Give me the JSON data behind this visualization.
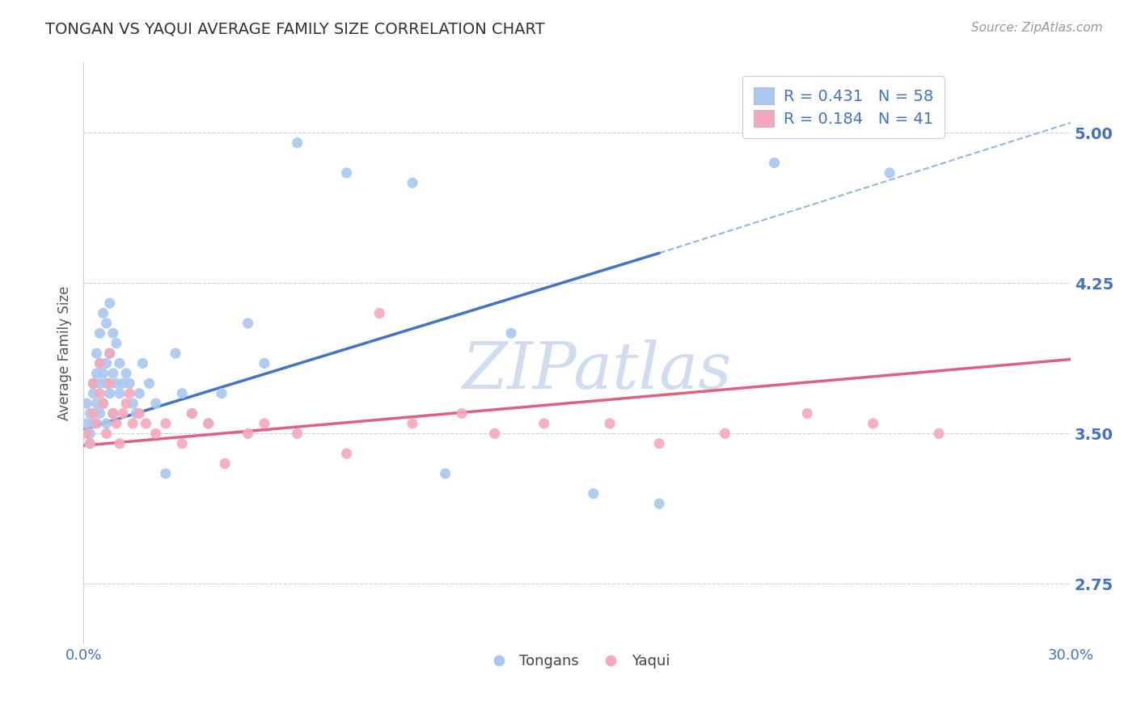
{
  "title": "TONGAN VS YAQUI AVERAGE FAMILY SIZE CORRELATION CHART",
  "source": "Source: ZipAtlas.com",
  "ylabel": "Average Family Size",
  "xlim": [
    0.0,
    0.3
  ],
  "ylim": [
    2.45,
    5.35
  ],
  "xticks": [
    0.0,
    0.3
  ],
  "xticklabels": [
    "0.0%",
    "30.0%"
  ],
  "yticks": [
    2.75,
    3.5,
    4.25,
    5.0
  ],
  "yticklabels": [
    "2.75",
    "3.50",
    "4.25",
    "5.00"
  ],
  "tongan_color": "#A8C8F0",
  "yaqui_color": "#F4A8BC",
  "tongan_line_color": "#4472C4",
  "yaqui_line_color": "#E06080",
  "dashed_line_color": "#90B8E0",
  "axis_color": "#4472C4",
  "grid_color": "#D0D0E0",
  "background_color": "#FFFFFF",
  "title_color": "#333333",
  "watermark_color": "#D0DCF0",
  "R_tongan": 0.431,
  "N_tongan": 58,
  "R_yaqui": 0.184,
  "N_yaqui": 41,
  "tongan_x": [
    0.001,
    0.001,
    0.002,
    0.002,
    0.002,
    0.003,
    0.003,
    0.003,
    0.004,
    0.004,
    0.004,
    0.005,
    0.005,
    0.005,
    0.005,
    0.006,
    0.006,
    0.006,
    0.007,
    0.007,
    0.007,
    0.007,
    0.008,
    0.008,
    0.008,
    0.009,
    0.009,
    0.009,
    0.01,
    0.01,
    0.011,
    0.011,
    0.012,
    0.013,
    0.014,
    0.015,
    0.016,
    0.017,
    0.018,
    0.02,
    0.022,
    0.025,
    0.028,
    0.03,
    0.033,
    0.038,
    0.042,
    0.05,
    0.055,
    0.065,
    0.08,
    0.1,
    0.11,
    0.13,
    0.155,
    0.175,
    0.21,
    0.245
  ],
  "tongan_y": [
    3.55,
    3.65,
    3.5,
    3.6,
    3.45,
    3.75,
    3.55,
    3.7,
    3.8,
    3.65,
    3.9,
    3.6,
    3.75,
    4.0,
    3.85,
    3.65,
    3.8,
    4.1,
    3.55,
    3.75,
    3.85,
    4.05,
    3.7,
    3.9,
    4.15,
    3.6,
    3.8,
    4.0,
    3.75,
    3.95,
    3.7,
    3.85,
    3.75,
    3.8,
    3.75,
    3.65,
    3.6,
    3.7,
    3.85,
    3.75,
    3.65,
    3.3,
    3.9,
    3.7,
    3.6,
    3.55,
    3.7,
    4.05,
    3.85,
    4.95,
    4.8,
    4.75,
    3.3,
    4.0,
    3.2,
    3.15,
    4.85,
    4.8
  ],
  "yaqui_x": [
    0.001,
    0.002,
    0.003,
    0.003,
    0.004,
    0.005,
    0.005,
    0.006,
    0.007,
    0.008,
    0.008,
    0.009,
    0.01,
    0.011,
    0.012,
    0.013,
    0.014,
    0.015,
    0.017,
    0.019,
    0.022,
    0.025,
    0.03,
    0.033,
    0.038,
    0.043,
    0.05,
    0.055,
    0.065,
    0.08,
    0.09,
    0.1,
    0.115,
    0.125,
    0.14,
    0.16,
    0.175,
    0.195,
    0.22,
    0.24,
    0.26
  ],
  "yaqui_y": [
    3.5,
    3.45,
    3.6,
    3.75,
    3.55,
    3.7,
    3.85,
    3.65,
    3.5,
    3.75,
    3.9,
    3.6,
    3.55,
    3.45,
    3.6,
    3.65,
    3.7,
    3.55,
    3.6,
    3.55,
    3.5,
    3.55,
    3.45,
    3.6,
    3.55,
    3.35,
    3.5,
    3.55,
    3.5,
    3.4,
    4.1,
    3.55,
    3.6,
    3.5,
    3.55,
    3.55,
    3.45,
    3.5,
    3.6,
    3.55,
    3.5
  ],
  "tongan_line_x0": 0.0,
  "tongan_line_y0": 3.52,
  "tongan_line_x1": 0.175,
  "tongan_line_y1": 4.4,
  "dashed_line_x0": 0.175,
  "dashed_line_y0": 4.4,
  "dashed_line_x1": 0.3,
  "dashed_line_y1": 5.05,
  "yaqui_line_x0": 0.0,
  "yaqui_line_y0": 3.44,
  "yaqui_line_x1": 0.3,
  "yaqui_line_y1": 3.87
}
